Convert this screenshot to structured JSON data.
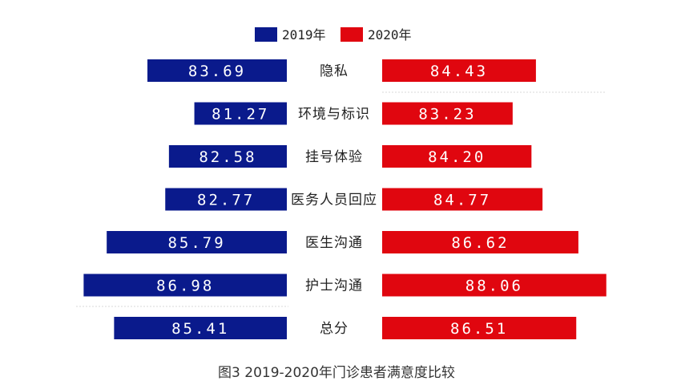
{
  "chart_data": {
    "type": "bar",
    "orientation": "horizontal-butterfly",
    "categories": [
      "隐私",
      "环境与标识",
      "挂号体验",
      "医务人员回应",
      "医生沟通",
      "护士沟通",
      "总分"
    ],
    "series": [
      {
        "name": "2019年",
        "color": "#0a1a8c",
        "values": [
          "83.69",
          "81.27",
          "82.58",
          "82.77",
          "85.79",
          "86.98",
          "85.41"
        ]
      },
      {
        "name": "2020年",
        "color": "#e0060f",
        "values": [
          "84.43",
          "83.23",
          "84.20",
          "84.77",
          "86.62",
          "88.06",
          "86.51"
        ]
      }
    ],
    "legend_position": "top-center",
    "grid": false
  },
  "caption": "图3  2019-2020年门诊患者满意度比较"
}
